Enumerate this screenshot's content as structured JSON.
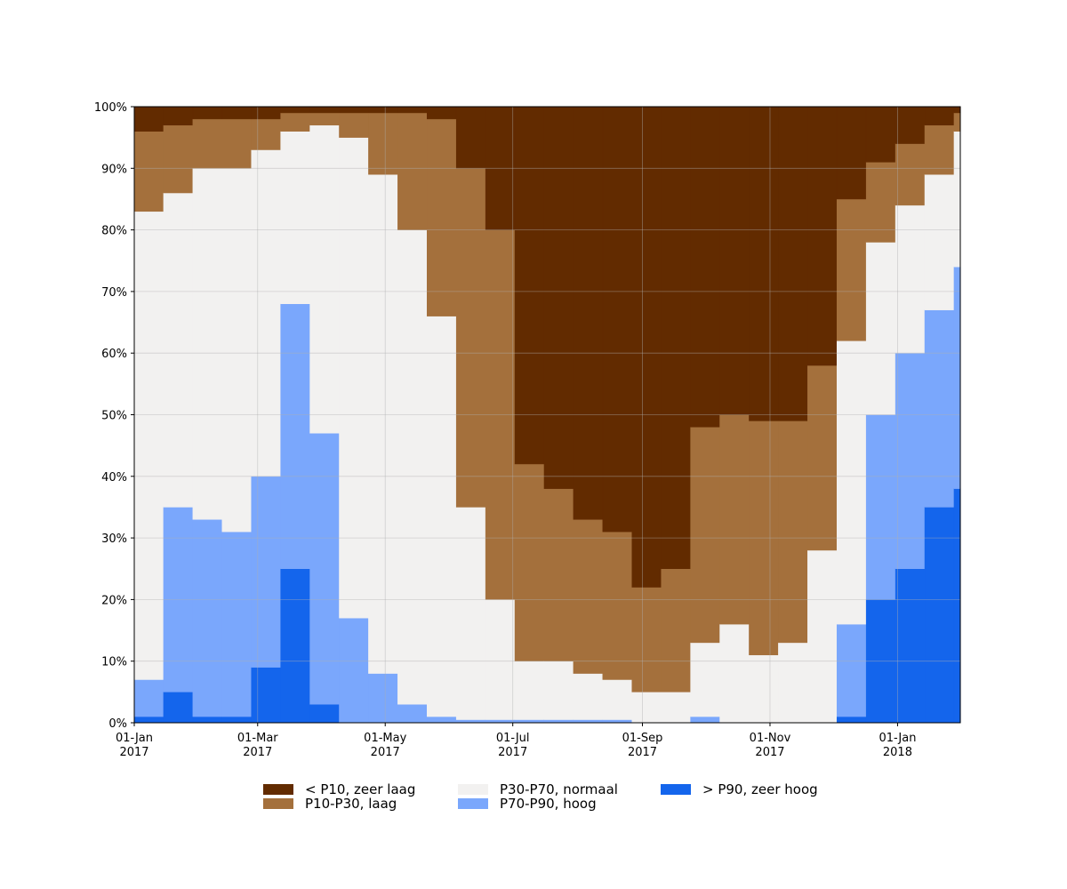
{
  "chart_data": {
    "type": "stacked_step_area",
    "x": [
      "2017-01-01",
      "2017-01-15",
      "2017-01-29",
      "2017-02-12",
      "2017-02-26",
      "2017-03-12",
      "2017-03-26",
      "2017-04-09",
      "2017-04-23",
      "2017-05-07",
      "2017-05-21",
      "2017-06-04",
      "2017-06-18",
      "2017-07-02",
      "2017-07-16",
      "2017-07-30",
      "2017-08-13",
      "2017-08-27",
      "2017-09-10",
      "2017-09-24",
      "2017-10-08",
      "2017-10-22",
      "2017-11-05",
      "2017-11-19",
      "2017-12-03",
      "2017-12-17",
      "2017-12-31",
      "2018-01-14",
      "2018-01-28"
    ],
    "series": [
      {
        "name": "> P90, zeer hoog",
        "color": "#1465ec",
        "values": [
          1,
          5,
          1,
          1,
          9,
          25,
          3,
          0,
          0,
          0,
          0,
          0,
          0,
          0,
          0,
          0,
          0,
          0,
          0,
          0,
          0,
          0,
          0,
          0,
          1,
          20,
          25,
          35,
          38
        ]
      },
      {
        "name": "P70-P90, hoog",
        "color": "#7aa7fc",
        "values": [
          6,
          30,
          32,
          30,
          31,
          43,
          44,
          17,
          8,
          3,
          1,
          0.5,
          0.5,
          0.5,
          0.5,
          0.5,
          0.5,
          0,
          0,
          1,
          0,
          0,
          0,
          0,
          15,
          30,
          35,
          32,
          36
        ]
      },
      {
        "name": "P30-P70, normaal",
        "color": "#f2f1f0",
        "values": [
          76,
          51,
          57,
          59,
          53,
          28,
          50,
          78,
          81,
          77,
          65,
          34.5,
          19.5,
          9.5,
          9.5,
          7.5,
          6.5,
          5,
          5,
          12,
          16,
          11,
          13,
          28,
          46,
          28,
          24,
          22,
          22
        ]
      },
      {
        "name": "P10-P30, laag",
        "color": "#a4703c",
        "values": [
          13,
          11,
          8,
          8,
          5,
          3,
          2,
          4,
          10,
          19,
          32,
          55,
          60,
          32,
          28,
          25,
          24,
          17,
          20,
          35,
          34,
          38,
          36,
          30,
          23,
          13,
          10,
          8,
          3
        ]
      },
      {
        "name": "< P10, zeer laag",
        "color": "#622b00",
        "values": [
          4,
          3,
          2,
          2,
          2,
          1,
          1,
          1,
          1,
          1,
          2,
          10,
          20,
          58,
          62,
          67,
          69,
          78,
          75,
          52,
          50,
          51,
          51,
          42,
          15,
          9,
          6,
          3,
          1
        ]
      }
    ],
    "xlim": [
      "2017-01-01",
      "2018-01-31"
    ],
    "xticks": [
      {
        "value": "2017-01-01",
        "label": "01-Jan 2017"
      },
      {
        "value": "2017-03-01",
        "label": "01-Mar 2017"
      },
      {
        "value": "2017-05-01",
        "label": "01-May 2017"
      },
      {
        "value": "2017-07-01",
        "label": "01-Jul 2017"
      },
      {
        "value": "2017-09-01",
        "label": "01-Sep 2017"
      },
      {
        "value": "2017-11-01",
        "label": "01-Nov 2017"
      },
      {
        "value": "2018-01-01",
        "label": "01-Jan 2018"
      }
    ],
    "ylim": [
      0,
      100
    ],
    "yticks": [
      {
        "value": 0,
        "label": "0%"
      },
      {
        "value": 10,
        "label": "10%"
      },
      {
        "value": 20,
        "label": "20%"
      },
      {
        "value": 30,
        "label": "30%"
      },
      {
        "value": 40,
        "label": "40%"
      },
      {
        "value": 50,
        "label": "50%"
      },
      {
        "value": 60,
        "label": "60%"
      },
      {
        "value": 70,
        "label": "70%"
      },
      {
        "value": 80,
        "label": "80%"
      },
      {
        "value": 90,
        "label": "90%"
      },
      {
        "value": 100,
        "label": "100%"
      }
    ],
    "grid": true
  }
}
